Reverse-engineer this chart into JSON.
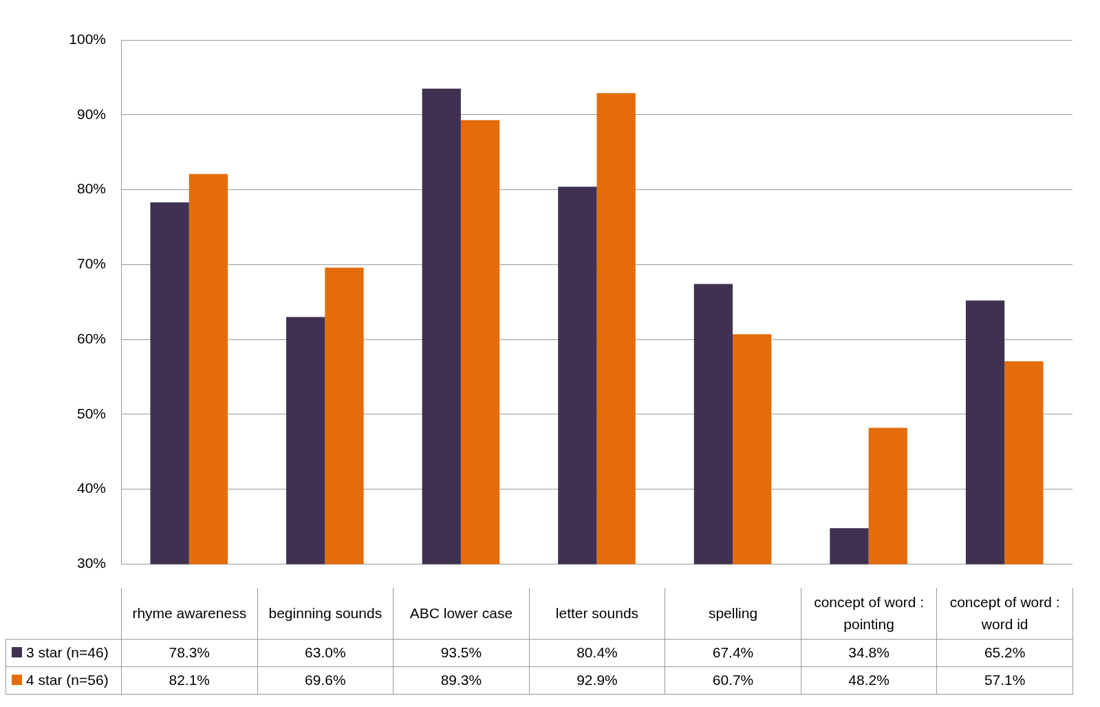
{
  "chart_data": {
    "type": "bar",
    "categories": [
      "rhyme awareness",
      "beginning sounds",
      "ABC lower case",
      "letter sounds",
      "spelling",
      "concept of word : pointing",
      "concept of word : word id"
    ],
    "series": [
      {
        "name": "3 star (n=46)",
        "color": "#3f3151",
        "values": [
          78.3,
          63.0,
          93.5,
          80.4,
          67.4,
          34.8,
          65.2
        ],
        "value_labels": [
          "78.3%",
          "63.0%",
          "93.5%",
          "80.4%",
          "67.4%",
          "34.8%",
          "65.2%"
        ]
      },
      {
        "name": "4 star (n=56)",
        "color": "#e46c0a",
        "values": [
          82.1,
          69.6,
          89.3,
          92.9,
          60.7,
          48.2,
          57.1
        ],
        "value_labels": [
          "82.1%",
          "69.6%",
          "89.3%",
          "92.9%",
          "60.7%",
          "48.2%",
          "57.1%"
        ]
      }
    ],
    "ylim": [
      30,
      100
    ],
    "yticks": [
      {
        "value": 30,
        "label": "30%"
      },
      {
        "value": 40,
        "label": "40%"
      },
      {
        "value": 50,
        "label": "50%"
      },
      {
        "value": 60,
        "label": "60%"
      },
      {
        "value": 70,
        "label": "70%"
      },
      {
        "value": 80,
        "label": "80%"
      },
      {
        "value": 90,
        "label": "90%"
      },
      {
        "value": 100,
        "label": "100%"
      }
    ],
    "grid": "y",
    "legend": "bottom"
  }
}
